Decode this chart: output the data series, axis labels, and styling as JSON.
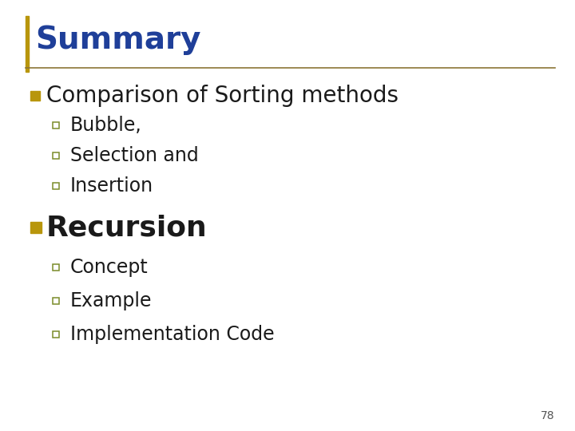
{
  "background_color": "#ffffff",
  "title": "Summary",
  "title_color": "#1F3F99",
  "title_fontsize": 28,
  "left_bar_color": "#B8960C",
  "divider_color": "#8B7536",
  "bullet1_text": "Comparison of Sorting methods",
  "bullet1_color": "#1a1a1a",
  "bullet1_marker_color": "#B8960C",
  "bullet1_fontsize": 20,
  "sub_bullet_color": "#1a1a1a",
  "sub_bullet_marker_color": "#7A8C2A",
  "sub_bullet_fontsize": 17,
  "sub_items_1": [
    "Bubble,",
    "Selection and",
    "Insertion"
  ],
  "bullet2_text": "Recursion",
  "bullet2_color": "#1a1a1a",
  "bullet2_marker_color": "#B8960C",
  "bullet2_fontsize": 26,
  "sub_items_2": [
    "Concept",
    "Example",
    "Implementation Code"
  ],
  "page_number": "78",
  "page_number_color": "#555555",
  "page_number_fontsize": 10
}
